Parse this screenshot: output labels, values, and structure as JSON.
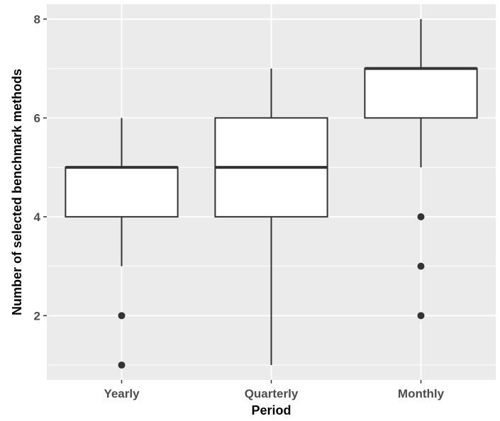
{
  "chart_data": {
    "type": "boxplot",
    "title": "",
    "xlabel": "Period",
    "ylabel": "Number of selected benchmark methods",
    "categories": [
      "Yearly",
      "Quarterly",
      "Monthly"
    ],
    "ylim": [
      0.7,
      8.3
    ],
    "y_ticks": [
      2,
      4,
      6,
      8
    ],
    "y_tick_labels": [
      "2",
      "4",
      "6",
      "8"
    ],
    "grid": true,
    "boxes": [
      {
        "category": "Yearly",
        "lower_whisker": 3,
        "q1": 4,
        "median": 5,
        "q3": 5,
        "upper_whisker": 6,
        "outliers": [
          2,
          1
        ]
      },
      {
        "category": "Quarterly",
        "lower_whisker": 1,
        "q1": 4,
        "median": 5,
        "q3": 6,
        "upper_whisker": 7,
        "outliers": []
      },
      {
        "category": "Monthly",
        "lower_whisker": 5,
        "q1": 6,
        "median": 7,
        "q3": 7,
        "upper_whisker": 8,
        "outliers": [
          4,
          3,
          2
        ]
      }
    ],
    "colors": {
      "panel": "#ebebeb",
      "grid": "#ffffff",
      "box_fill": "#ffffff",
      "box_line": "#333333",
      "outlier": "#333333",
      "tick_text": "#4d4d4d"
    }
  }
}
